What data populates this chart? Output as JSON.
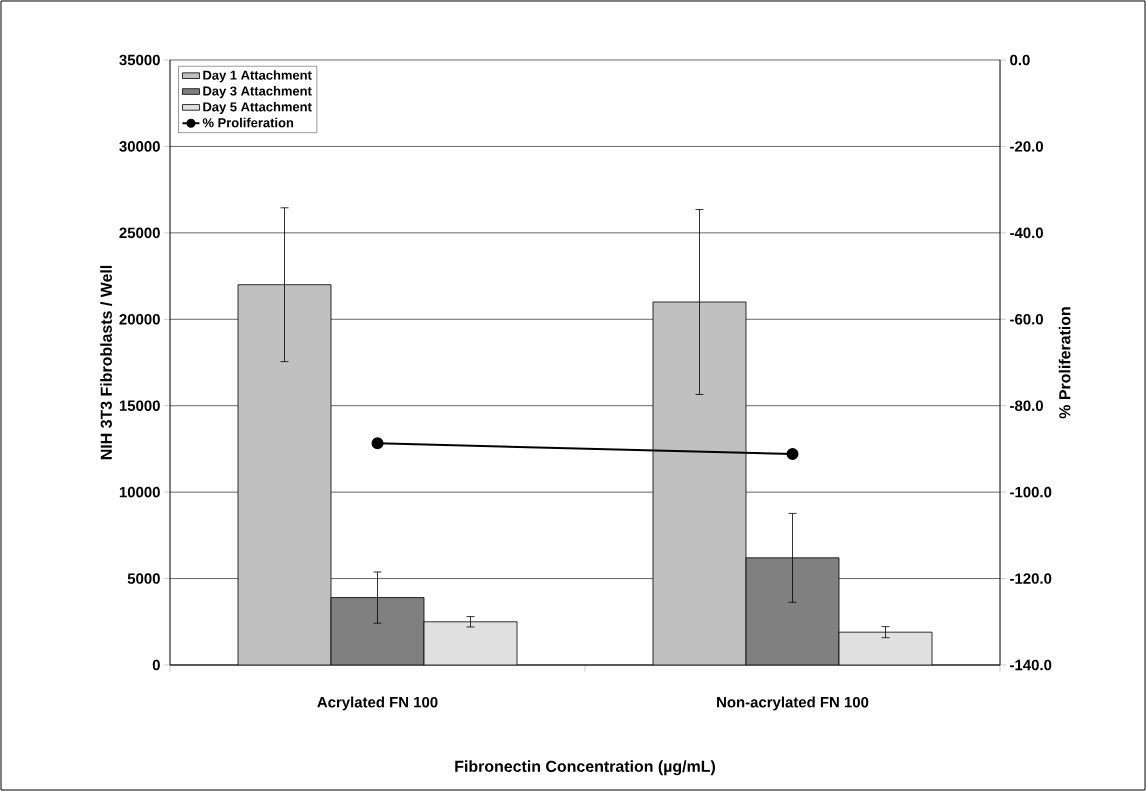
{
  "chart_data": {
    "type": "bar",
    "xlabel": "Fibronectin Concentration (µg/mL)",
    "ylabel": "NIH 3T3 Fibroblasts / Well",
    "y2label": "% Proliferation",
    "categories": [
      "Acrylated FN 100",
      "Non-acrylated FN 100"
    ],
    "series": [
      {
        "name": "Day 1 Attachment",
        "color": "#c0c0c0",
        "values": [
          22000,
          21000
        ],
        "errors": [
          4450,
          5350
        ]
      },
      {
        "name": "Day 3 Attachment",
        "color": "#808080",
        "values": [
          3900,
          6200
        ],
        "errors": [
          1480,
          2570
        ]
      },
      {
        "name": "Day 5 Attachment",
        "color": "#e0e0e0",
        "values": [
          2500,
          1900
        ],
        "errors": [
          300,
          320
        ]
      },
      {
        "name": "% Proliferation",
        "type": "line",
        "axis": "y2",
        "color": "#000000",
        "values": [
          -88.7,
          -91.2
        ]
      }
    ],
    "ylim": [
      0,
      35000
    ],
    "yticks": [
      0,
      5000,
      10000,
      15000,
      20000,
      25000,
      30000,
      35000
    ],
    "y2lim": [
      -140,
      0
    ],
    "y2ticks": [
      {
        "value": -140,
        "label": "-140.0"
      },
      {
        "value": -120,
        "label": "-120.0"
      },
      {
        "value": -100,
        "label": "-100.0"
      },
      {
        "value": -80,
        "label": "-80.0"
      },
      {
        "value": -60,
        "label": "-60.0"
      },
      {
        "value": -40,
        "label": "-40.0"
      },
      {
        "value": -20,
        "label": "-20.0"
      },
      {
        "value": 0,
        "label": "0.0"
      }
    ],
    "grid": "y",
    "legend": "top left",
    "marker": "circle"
  }
}
